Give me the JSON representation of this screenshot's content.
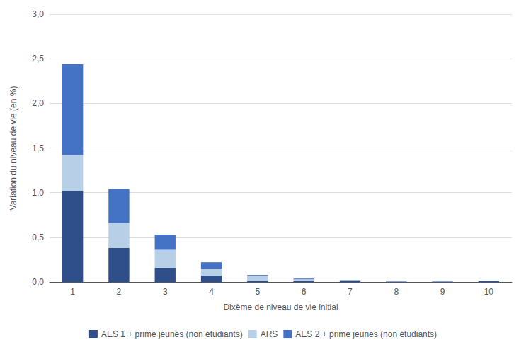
{
  "chart_data": {
    "type": "bar",
    "stacked": true,
    "categories": [
      1,
      2,
      3,
      4,
      5,
      6,
      7,
      8,
      9,
      10
    ],
    "series": [
      {
        "name": "AES 1 + prime jeunes (non étudiants)",
        "color": "#2e4f8a",
        "values": [
          1.02,
          0.38,
          0.16,
          0.07,
          0.015,
          0.015,
          0.008,
          0.005,
          0.005,
          0.008
        ]
      },
      {
        "name": "ARS",
        "color": "#b8cfe8",
        "values": [
          0.4,
          0.28,
          0.2,
          0.08,
          0.055,
          0.015,
          0.012,
          0.005,
          0.005,
          0.003
        ]
      },
      {
        "name": "AES 2 + prime jeunes (non étudiants)",
        "color": "#4472c4",
        "values": [
          1.02,
          0.38,
          0.17,
          0.07,
          0.008,
          0.008,
          0.003,
          0.003,
          0.003,
          0.003
        ]
      }
    ],
    "xlabel": "Dixème de niveau de vie initial",
    "ylabel": "Variation du niveau de vie (en %)",
    "ylim": [
      0,
      3.0
    ],
    "yticks": [
      {
        "value": 0.0,
        "label": "0,0"
      },
      {
        "value": 0.5,
        "label": "0,5"
      },
      {
        "value": 1.0,
        "label": "1,0"
      },
      {
        "value": 1.5,
        "label": "1,5"
      },
      {
        "value": 2.0,
        "label": "2,0"
      },
      {
        "value": 2.5,
        "label": "2,5"
      },
      {
        "value": 3.0,
        "label": "3,0"
      }
    ],
    "grid": true,
    "legend": "bottom"
  }
}
